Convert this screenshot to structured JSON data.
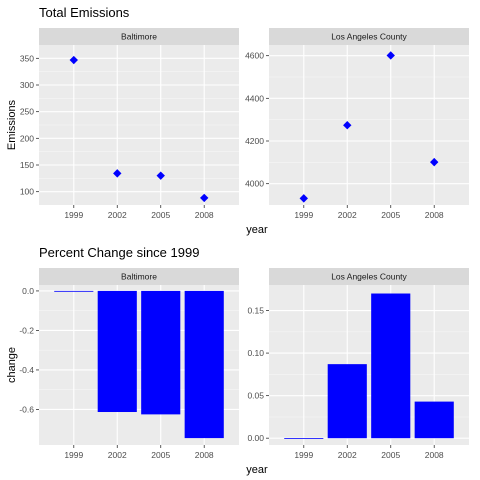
{
  "chart_data": [
    {
      "type": "scatter",
      "title": "Total Emissions",
      "ylabel": "Emissions",
      "xlabel": "year",
      "panels": [
        {
          "strip": "Baltimore",
          "categories": [
            "1999",
            "2002",
            "2005",
            "2008"
          ],
          "values": [
            346.8,
            134.3,
            130.0,
            88.3
          ],
          "ylim": [
            75,
            375
          ],
          "yticks": [
            100,
            150,
            200,
            250,
            300,
            350
          ],
          "ytick_labels": [
            "100",
            "150",
            "200",
            "250",
            "300",
            "350"
          ]
        },
        {
          "strip": "Los Angeles County",
          "categories": [
            "1999",
            "2002",
            "2005",
            "2008"
          ],
          "values": [
            3931,
            4274,
            4601,
            4101
          ],
          "ylim": [
            3900,
            4650
          ],
          "yticks": [
            4000,
            4200,
            4400,
            4600
          ],
          "ytick_labels": [
            "4000",
            "4200",
            "4400",
            "4600"
          ]
        }
      ],
      "marker_color": "#0000ff",
      "grid": true
    },
    {
      "type": "bar",
      "title": "Percent Change since 1999",
      "ylabel": "change",
      "xlabel": "year",
      "panels": [
        {
          "strip": "Baltimore",
          "categories": [
            "1999",
            "2002",
            "2005",
            "2008"
          ],
          "values": [
            0.0,
            -0.613,
            -0.625,
            -0.745
          ],
          "ylim": [
            -0.78,
            0.03
          ],
          "yticks": [
            0.0,
            -0.2,
            -0.4,
            -0.6
          ],
          "ytick_labels": [
            "0.0",
            "-0.2",
            "-0.4",
            "-0.6"
          ]
        },
        {
          "strip": "Los Angeles County",
          "categories": [
            "1999",
            "2002",
            "2005",
            "2008"
          ],
          "values": [
            0.0,
            0.087,
            0.17,
            0.043
          ],
          "ylim": [
            -0.008,
            0.18
          ],
          "yticks": [
            0.0,
            0.05,
            0.1,
            0.15
          ],
          "ytick_labels": [
            "0.00",
            "0.05",
            "0.10",
            "0.15"
          ]
        }
      ],
      "bar_color": "#0000ff",
      "grid": true
    }
  ],
  "colors": {
    "panel_bg": "#ebebeb",
    "strip_bg": "#d9d9d9",
    "grid_major": "#ffffff",
    "data": "#0000ff"
  }
}
